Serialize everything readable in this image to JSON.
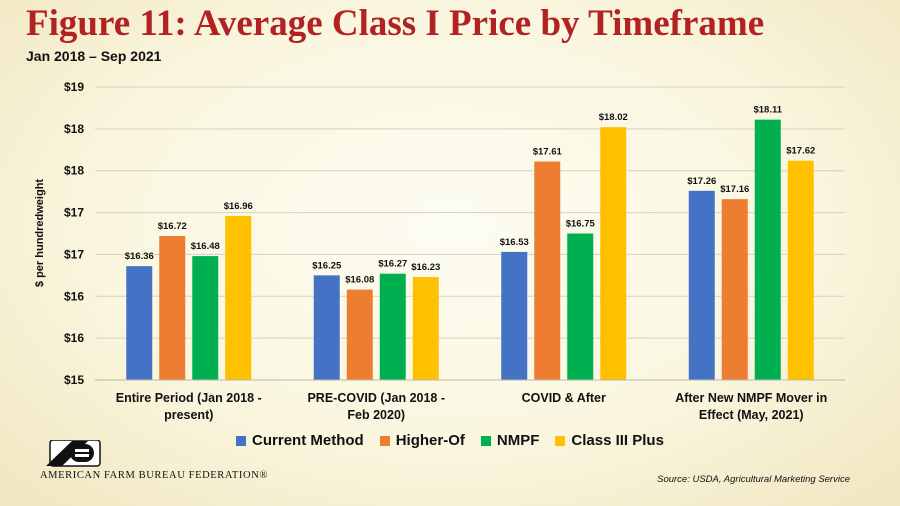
{
  "header": {
    "title": "Figure 11: Average Class I Price by Timeframe",
    "subtitle": "Jan 2018 – Sep 2021"
  },
  "footer": {
    "org_name": "AMERICAN FARM BUREAU FEDERATION®",
    "source": "Source: USDA, Agricultural Marketing Service"
  },
  "chart_data": {
    "type": "bar",
    "title": "",
    "xlabel": "",
    "ylabel": "$ per hundredweight",
    "y_tick_labels": [
      "$15",
      "$16",
      "$16",
      "$17",
      "$17",
      "$18",
      "$18",
      "$19"
    ],
    "ylim": [
      15,
      18.5
    ],
    "grid": true,
    "legend_position": "bottom",
    "categories": [
      "Entire Period (Jan 2018 - present)",
      "PRE-COVID (Jan 2018 - Feb 2020)",
      "COVID & After",
      "After New NMPF Mover in Effect (May, 2021)"
    ],
    "category_label_lines": [
      [
        "Entire Period (Jan 2018 -",
        "present)"
      ],
      [
        "PRE-COVID (Jan 2018 -",
        "Feb 2020)"
      ],
      [
        "COVID & After"
      ],
      [
        "After New NMPF Mover in",
        "Effect (May, 2021)"
      ]
    ],
    "series": [
      {
        "name": "Current Method",
        "color": "#4472c4",
        "values": [
          16.36,
          16.25,
          16.53,
          17.26
        ],
        "labels": [
          "$16.36",
          "$16.25",
          "$16.53",
          "$17.26"
        ]
      },
      {
        "name": "Higher-Of",
        "color": "#ed7d31",
        "values": [
          16.72,
          16.08,
          17.61,
          17.16
        ],
        "labels": [
          "$16.72",
          "$16.08",
          "$17.61",
          "$17.16"
        ]
      },
      {
        "name": "NMPF",
        "color": "#00b050",
        "values": [
          16.48,
          16.27,
          16.75,
          18.11
        ],
        "labels": [
          "$16.48",
          "$16.27",
          "$16.75",
          "$18.11"
        ]
      },
      {
        "name": "Class III Plus",
        "color": "#ffc000",
        "values": [
          16.96,
          16.23,
          18.02,
          17.62
        ],
        "labels": [
          "$16.96",
          "$16.23",
          "$18.02",
          "$17.62"
        ]
      }
    ]
  }
}
